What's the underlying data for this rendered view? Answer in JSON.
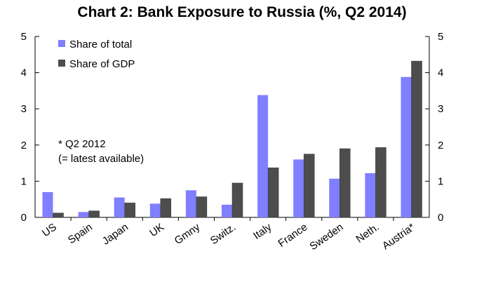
{
  "chart_data": {
    "type": "bar",
    "title": "Chart 2: Bank Exposure to Russia (%, Q2 2014)",
    "categories": [
      "US",
      "Spain",
      "Japan",
      "UK",
      "Gmny",
      "Switz.",
      "Italy",
      "France",
      "Sweden",
      "Neth.",
      "Austria*"
    ],
    "series": [
      {
        "name": "Share of total",
        "color": "#7f7fff",
        "values": [
          0.7,
          0.15,
          0.55,
          0.38,
          0.75,
          0.35,
          3.38,
          1.6,
          1.07,
          1.22,
          3.88
        ]
      },
      {
        "name": "Share of GDP",
        "color": "#4d4d4d",
        "values": [
          0.12,
          0.18,
          0.4,
          0.52,
          0.57,
          0.95,
          1.37,
          1.75,
          1.9,
          1.93,
          4.32
        ]
      }
    ],
    "ylim": [
      0,
      5
    ],
    "yticks": [
      "0",
      "1",
      "2",
      "3",
      "4",
      "5"
    ],
    "legend_position": "top-left",
    "annotation": [
      "* Q2 2012",
      "(= latest available)"
    ],
    "xlabel": "",
    "ylabel": ""
  }
}
